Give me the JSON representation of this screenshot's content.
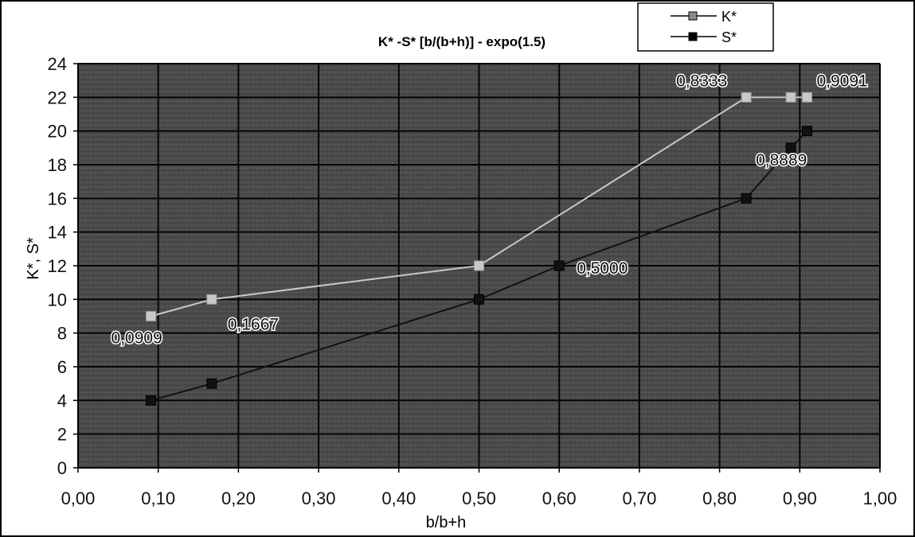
{
  "chart_data": {
    "type": "line",
    "title": "K* -S* [b/(b+h)] - expo(1.5)",
    "xlabel": "b/b+h",
    "ylabel": "K*, S*",
    "xlim": [
      0,
      1
    ],
    "ylim": [
      0,
      24
    ],
    "x_ticks": [
      "0,00",
      "0,10",
      "0,20",
      "0,30",
      "0,40",
      "0,50",
      "0,60",
      "0,70",
      "0,80",
      "0,90",
      "1,00"
    ],
    "y_ticks": [
      "0",
      "2",
      "4",
      "6",
      "8",
      "10",
      "12",
      "14",
      "16",
      "18",
      "20",
      "22",
      "24"
    ],
    "grid": true,
    "legend_position": "top-right",
    "series": [
      {
        "name": "K*",
        "color": "#c8c8c8",
        "marker": "square",
        "points": [
          {
            "x": 0.0909,
            "y": 9
          },
          {
            "x": 0.1667,
            "y": 10
          },
          {
            "x": 0.5,
            "y": 12
          },
          {
            "x": 0.8333,
            "y": 22
          },
          {
            "x": 0.8889,
            "y": 22
          },
          {
            "x": 0.9091,
            "y": 22
          }
        ]
      },
      {
        "name": "S*",
        "color": "#111111",
        "marker": "square",
        "points": [
          {
            "x": 0.0909,
            "y": 4
          },
          {
            "x": 0.1667,
            "y": 5
          },
          {
            "x": 0.5,
            "y": 10
          },
          {
            "x": 0.6,
            "y": 12
          },
          {
            "x": 0.8333,
            "y": 16
          },
          {
            "x": 0.8889,
            "y": 19
          },
          {
            "x": 0.9091,
            "y": 20
          }
        ]
      }
    ],
    "annotations": [
      {
        "text": "0,0909",
        "x": 0.0909,
        "y": 9
      },
      {
        "text": "0,1667",
        "x": 0.1667,
        "y": 10
      },
      {
        "text": "0,5000",
        "x": 0.6,
        "y": 12
      },
      {
        "text": "0,8333",
        "x": 0.8333,
        "y": 22
      },
      {
        "text": "0,8889",
        "x": 0.8889,
        "y": 19
      },
      {
        "text": "0,9091",
        "x": 0.9091,
        "y": 22
      }
    ],
    "colors": {
      "plot_background": "#4a4a4a",
      "grid": "#050505",
      "frame": "#000000"
    }
  }
}
